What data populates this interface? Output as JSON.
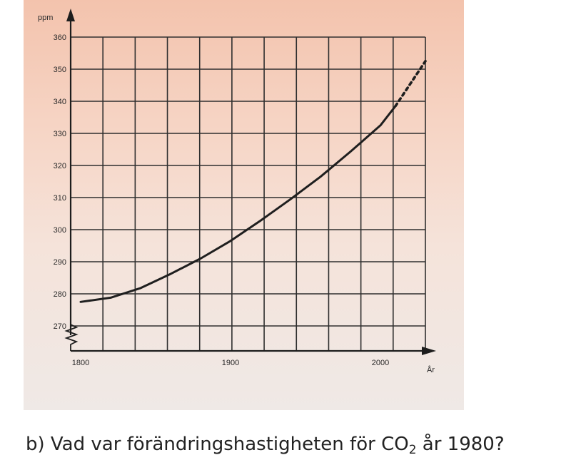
{
  "question": {
    "prefix": "b) Vad var förändringshastigheten för CO",
    "subscript": "2",
    "suffix": " år 1980?"
  },
  "chart_data": {
    "type": "line",
    "title": "",
    "ylabel": "ppm",
    "xlabel": "År",
    "xlim": [
      1800,
      2030
    ],
    "ylim": [
      270,
      360
    ],
    "x_ticks": [
      "1800",
      "1900",
      "2000"
    ],
    "y_ticks": [
      "360",
      "350",
      "340",
      "330",
      "320",
      "310",
      "300",
      "290",
      "280",
      "270"
    ],
    "grid": true,
    "axis_break": "y",
    "series": [
      {
        "style": "solid",
        "x": [
          1800,
          1820,
          1840,
          1860,
          1880,
          1900,
          1920,
          1940,
          1960,
          1980,
          2000,
          2010
        ],
        "y": [
          277.5,
          278.8,
          281.8,
          286.2,
          291.0,
          296.5,
          302.8,
          309.5,
          316.5,
          324.3,
          332.5,
          338.5
        ]
      },
      {
        "style": "dashed",
        "x": [
          2010,
          2020,
          2030
        ],
        "y": [
          338.5,
          345.5,
          352.5
        ]
      }
    ],
    "colors": {
      "curve": "#1f1f1f",
      "grid": "#2f2f2f",
      "background": "#f5d8ca"
    }
  }
}
